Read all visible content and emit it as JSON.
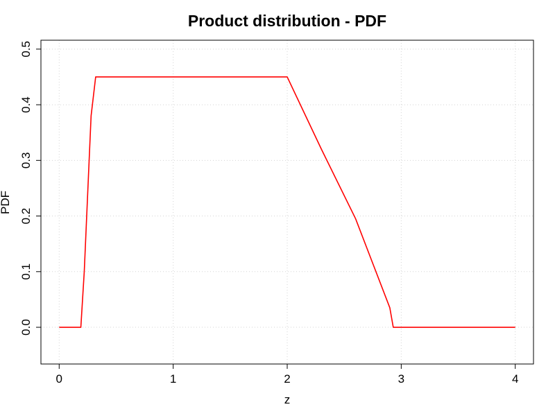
{
  "chart_data": {
    "type": "line",
    "title": "Product distribution - PDF",
    "xlabel": "z",
    "ylabel": "PDF",
    "xlim": [
      -0.16,
      4.16
    ],
    "ylim": [
      -0.066,
      0.516
    ],
    "x_ticks": [
      0,
      1,
      2,
      3,
      4
    ],
    "x_tick_labels": [
      "0",
      "1",
      "2",
      "3",
      "4"
    ],
    "y_ticks": [
      0.0,
      0.1,
      0.2,
      0.3,
      0.4,
      0.5
    ],
    "y_tick_labels": [
      "0.0",
      "0.1",
      "0.2",
      "0.3",
      "0.4",
      "0.5"
    ],
    "grid": true,
    "series": [
      {
        "color": "#ff0000",
        "x": [
          0,
          0.19,
          0.22,
          0.28,
          0.32,
          2.0,
          2.3,
          2.6,
          2.9,
          2.93,
          4.0
        ],
        "y": [
          0,
          0,
          0.1,
          0.38,
          0.45,
          0.45,
          0.32,
          0.195,
          0.035,
          0,
          0
        ]
      }
    ]
  }
}
